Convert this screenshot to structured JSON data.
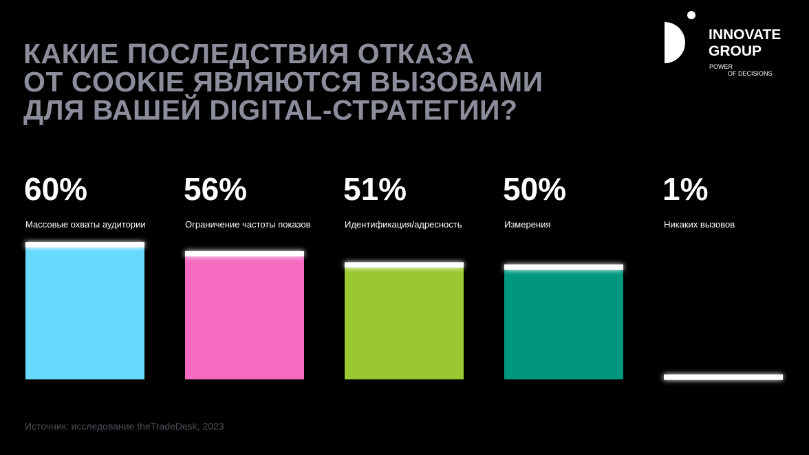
{
  "logo": {
    "name": [
      "INNOVATE",
      "GROUP"
    ],
    "tagline": [
      "POWER",
      "OF DECISIONS"
    ]
  },
  "chart_data": {
    "type": "bar",
    "title": [
      "КАКИЕ ПОСЛЕДСТВИЯ ОТКАЗА",
      "ОТ COOKIE ЯВЛЯЮТСЯ ВЫЗОВАМИ",
      "ДЛЯ ВАШЕЙ DIGITAL-СТРАТЕГИИ?"
    ],
    "categories": [
      "Массовые охваты аудитории",
      "Ограничение частоты показов",
      "Идентификация/адресность",
      "Измерения",
      "Никаких вызовов"
    ],
    "values": [
      60,
      56,
      51,
      50,
      1
    ],
    "value_labels": [
      "60%",
      "56%",
      "51%",
      "50%",
      "1%"
    ],
    "colors": [
      "#66d9ff",
      "#f46bc0",
      "#9ac831",
      "#00977f",
      "#ffffff"
    ],
    "source": "Источник: исследование theTradeDesk, 2023"
  }
}
